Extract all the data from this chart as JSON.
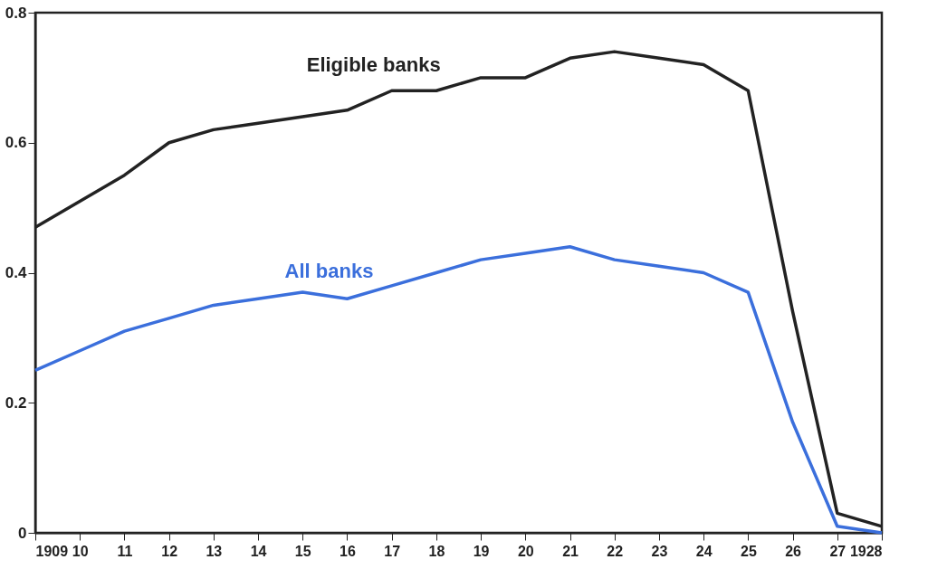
{
  "chart_data": {
    "type": "line",
    "x": [
      1909,
      1910,
      1911,
      1912,
      1913,
      1914,
      1915,
      1916,
      1917,
      1918,
      1919,
      1920,
      1921,
      1922,
      1923,
      1924,
      1925,
      1926,
      1927,
      1928
    ],
    "series": [
      {
        "name": "Eligible banks",
        "color": "#222222",
        "values": [
          0.47,
          0.51,
          0.55,
          0.6,
          0.62,
          0.63,
          0.64,
          0.65,
          0.68,
          0.68,
          0.7,
          0.7,
          0.73,
          0.74,
          0.73,
          0.72,
          0.68,
          0.34,
          0.03,
          0.01
        ]
      },
      {
        "name": "All banks",
        "color": "#3b6fdc",
        "values": [
          0.25,
          0.28,
          0.31,
          0.33,
          0.35,
          0.36,
          0.37,
          0.36,
          0.38,
          0.4,
          0.42,
          0.43,
          0.44,
          0.42,
          0.41,
          0.4,
          0.37,
          0.17,
          0.01,
          0.0
        ]
      }
    ],
    "xlim": [
      1909,
      1928
    ],
    "xticks": [
      {
        "value": 1909,
        "label": "1909"
      },
      {
        "value": 1910,
        "label": "10"
      },
      {
        "value": 1911,
        "label": "11"
      },
      {
        "value": 1912,
        "label": "12"
      },
      {
        "value": 1913,
        "label": "13"
      },
      {
        "value": 1914,
        "label": "14"
      },
      {
        "value": 1915,
        "label": "15"
      },
      {
        "value": 1916,
        "label": "16"
      },
      {
        "value": 1917,
        "label": "17"
      },
      {
        "value": 1918,
        "label": "18"
      },
      {
        "value": 1919,
        "label": "19"
      },
      {
        "value": 1920,
        "label": "20"
      },
      {
        "value": 1921,
        "label": "21"
      },
      {
        "value": 1922,
        "label": "22"
      },
      {
        "value": 1923,
        "label": "23"
      },
      {
        "value": 1924,
        "label": "24"
      },
      {
        "value": 1925,
        "label": "25"
      },
      {
        "value": 1926,
        "label": "26"
      },
      {
        "value": 1927,
        "label": "27"
      },
      {
        "value": 1928,
        "label": "1928"
      }
    ],
    "ylim": [
      0,
      0.8
    ],
    "yticks": [
      0,
      0.2,
      0.4,
      0.6,
      0.8
    ],
    "grid": false,
    "legend": false,
    "marker": "none",
    "line_style": "solid"
  }
}
